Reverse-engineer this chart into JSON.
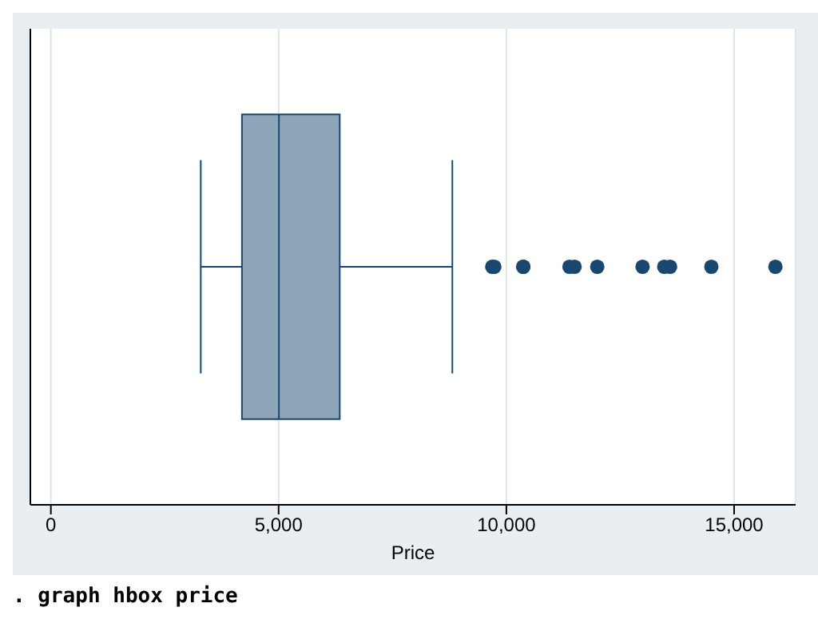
{
  "chart_data": {
    "type": "box",
    "orientation": "horizontal",
    "categories": [
      null
    ],
    "xlabel": "Price",
    "boxes": [
      {
        "low": 3291,
        "q1": 4195,
        "median": 5006.5,
        "q3": 6342,
        "high": 8814,
        "outliers": [
          9690,
          9735,
          10371,
          10372,
          11385,
          11497,
          11995,
          12990,
          13466,
          13594,
          14500,
          15906
        ]
      }
    ],
    "color": "#8ea4b8",
    "xlim": [
      -450,
      16350
    ],
    "xticks": [
      0,
      {
        "value": 5000,
        "label": "5,000"
      },
      {
        "value": 10000,
        "label": "10,000"
      },
      {
        "value": 15000,
        "label": "15,000"
      }
    ],
    "grid": "x",
    "tick_labels": "x",
    "annotations": [
      ". graph hbox price"
    ]
  }
}
